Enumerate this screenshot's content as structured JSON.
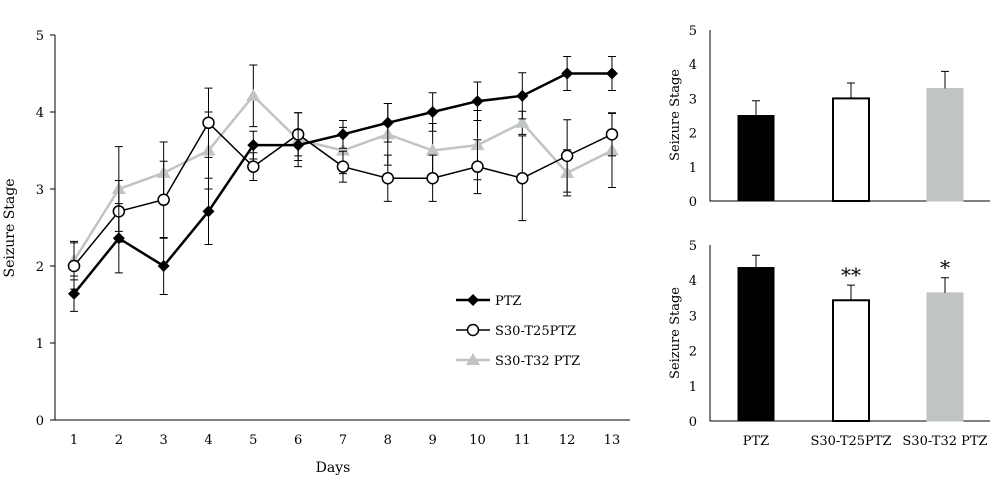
{
  "chart_data": [
    {
      "type": "line",
      "xlabel": "Days",
      "ylabel": "Seizure Stage",
      "ylim": [
        0,
        5
      ],
      "yticks": [
        0,
        1,
        2,
        3,
        4,
        5
      ],
      "x": [
        1,
        2,
        3,
        4,
        5,
        6,
        7,
        8,
        9,
        10,
        11,
        12,
        13
      ],
      "legend_position": "lower-right",
      "series": [
        {
          "name": "PTZ",
          "marker": "filled-diamond",
          "color": "#000000",
          "values": [
            1.64,
            2.36,
            2.0,
            2.71,
            3.57,
            3.57,
            3.71,
            3.86,
            4.0,
            4.14,
            4.21,
            4.5,
            4.5
          ],
          "errors": [
            0.23,
            0.45,
            0.37,
            0.43,
            0.18,
            0.2,
            0.18,
            0.25,
            0.25,
            0.25,
            0.3,
            0.22,
            0.22
          ]
        },
        {
          "name": "S30-T25PTZ",
          "marker": "open-circle",
          "color": "#000000",
          "values": [
            2.0,
            2.71,
            2.86,
            3.86,
            3.29,
            3.71,
            3.29,
            3.14,
            3.14,
            3.29,
            3.14,
            3.43,
            3.71
          ],
          "errors": [
            0.3,
            0.4,
            0.5,
            0.45,
            0.18,
            0.28,
            0.2,
            0.3,
            0.3,
            0.35,
            0.55,
            0.47,
            0.28
          ]
        },
        {
          "name": "S30-T32 PTZ",
          "marker": "filled-triangle",
          "color": "#c0c4c2",
          "values": [
            2.07,
            3.0,
            3.21,
            3.5,
            4.21,
            3.64,
            3.5,
            3.71,
            3.5,
            3.57,
            3.86,
            3.21,
            3.5
          ],
          "errors": [
            0.25,
            0.55,
            0.4,
            0.5,
            0.4,
            0.35,
            0.3,
            0.4,
            0.35,
            0.45,
            0.15,
            0.3,
            0.48
          ]
        }
      ]
    },
    {
      "type": "bar",
      "ylabel": "Seizure Stage",
      "ylim": [
        0,
        5
      ],
      "yticks": [
        0,
        1,
        2,
        3,
        4,
        5
      ],
      "categories": [
        "PTZ",
        "S30-T25PTZ",
        "S30-T32 PTZ"
      ],
      "values": [
        2.5,
        3.0,
        3.29
      ],
      "errors": [
        0.43,
        0.45,
        0.5
      ],
      "colors": [
        "#000000",
        "#ffffff",
        "#c0c4c2"
      ],
      "significance": [
        "",
        "",
        ""
      ]
    },
    {
      "type": "bar",
      "ylabel": "Seizure Stage",
      "ylim": [
        0,
        5
      ],
      "yticks": [
        0,
        1,
        2,
        3,
        4,
        5
      ],
      "categories": [
        "PTZ",
        "S30-T25PTZ",
        "S30-T32 PTZ"
      ],
      "values": [
        4.36,
        3.43,
        3.64
      ],
      "errors": [
        0.35,
        0.43,
        0.43
      ],
      "colors": [
        "#000000",
        "#ffffff",
        "#c0c4c2"
      ],
      "significance": [
        "",
        "**",
        "*"
      ]
    }
  ]
}
